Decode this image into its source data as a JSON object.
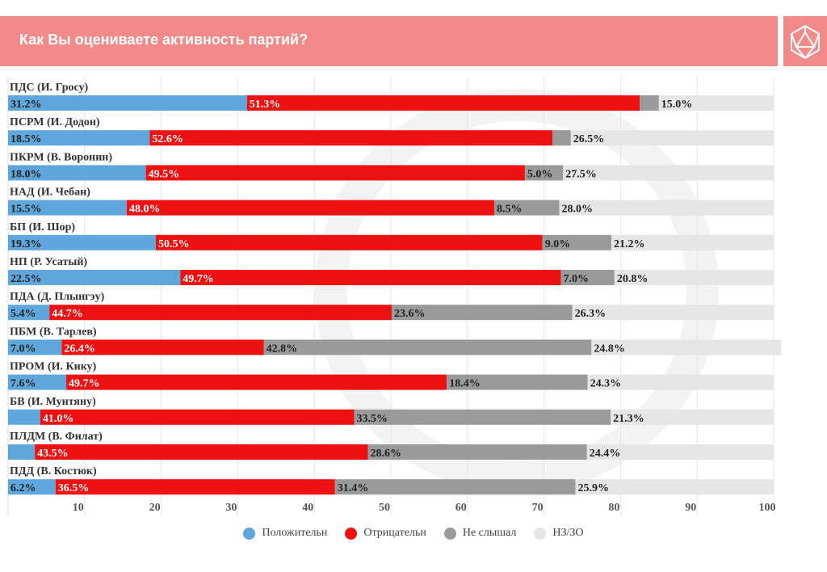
{
  "header": {
    "title": "Как Вы оцениваете активность партий?"
  },
  "colors": {
    "positive": "#5fa6dc",
    "negative": "#ee1111",
    "not_heard": "#9a9a9a",
    "hard_to_say": "#e6e6e6",
    "header": "#f28a8a"
  },
  "chart_data": {
    "type": "bar",
    "stacked": true,
    "orientation": "horizontal",
    "title": "Как Вы оцениваете активность партий?",
    "xlim": [
      0,
      100
    ],
    "xticks": [
      "10",
      "20",
      "30",
      "40",
      "50",
      "60",
      "70",
      "80",
      "90",
      "100"
    ],
    "grid": true,
    "legend_position": "bottom",
    "categories": [
      "ПДС (И. Гросу)",
      "ПСРМ (И. Додон)",
      "ПКРМ (В. Воронин)",
      "НАД (И. Чебан)",
      "БП (И. Шор)",
      "НП (Р. Усатый)",
      "ПДА (Д. Плынгэу)",
      "ПБМ (В. Тарлев)",
      "ПРОМ (И. Кику)",
      "БВ (И. Мунтяну)",
      "ПЛДМ (В. Филат)",
      "ПДД (В. Костюк)"
    ],
    "series": [
      {
        "name": "Положительн",
        "values": [
          31.2,
          18.5,
          18.0,
          15.5,
          19.3,
          22.5,
          5.4,
          7.0,
          7.6,
          4.2,
          3.5,
          6.2
        ],
        "labels": [
          "31.2%",
          "18.5%",
          "18.0%",
          "15.5%",
          "19.3%",
          "22.5%",
          "5.4%",
          "7.0%",
          "7.6%",
          "",
          "",
          "6.2%"
        ]
      },
      {
        "name": "Отрицательн",
        "values": [
          51.3,
          52.6,
          49.5,
          48.0,
          50.5,
          49.7,
          44.7,
          26.4,
          49.7,
          41.0,
          43.5,
          36.5
        ],
        "labels": [
          "51.3%",
          "52.6%",
          "49.5%",
          "48.0%",
          "50.5%",
          "49.7%",
          "44.7%",
          "26.4%",
          "49.7%",
          "41.0%",
          "43.5%",
          "36.5%"
        ]
      },
      {
        "name": "Не слышал",
        "values": [
          2.5,
          2.4,
          5.0,
          8.5,
          9.0,
          7.0,
          23.6,
          42.8,
          18.4,
          33.5,
          28.6,
          31.4
        ],
        "labels": [
          "",
          "",
          "5.0%",
          "8.5%",
          "9.0%",
          "7.0%",
          "23.6%",
          "42.8%",
          "18.4%",
          "33.5%",
          "28.6%",
          "31.4%"
        ]
      },
      {
        "name": "НЗ/ЗО",
        "values": [
          15.0,
          26.5,
          27.5,
          28.0,
          21.2,
          20.8,
          26.3,
          24.8,
          24.3,
          21.3,
          24.4,
          25.9
        ],
        "labels": [
          "15.0%",
          "26.5%",
          "27.5%",
          "28.0%",
          "21.2%",
          "20.8%",
          "26.3%",
          "24.8%",
          "24.3%",
          "21.3%",
          "24.4%",
          "25.9%"
        ]
      }
    ]
  }
}
